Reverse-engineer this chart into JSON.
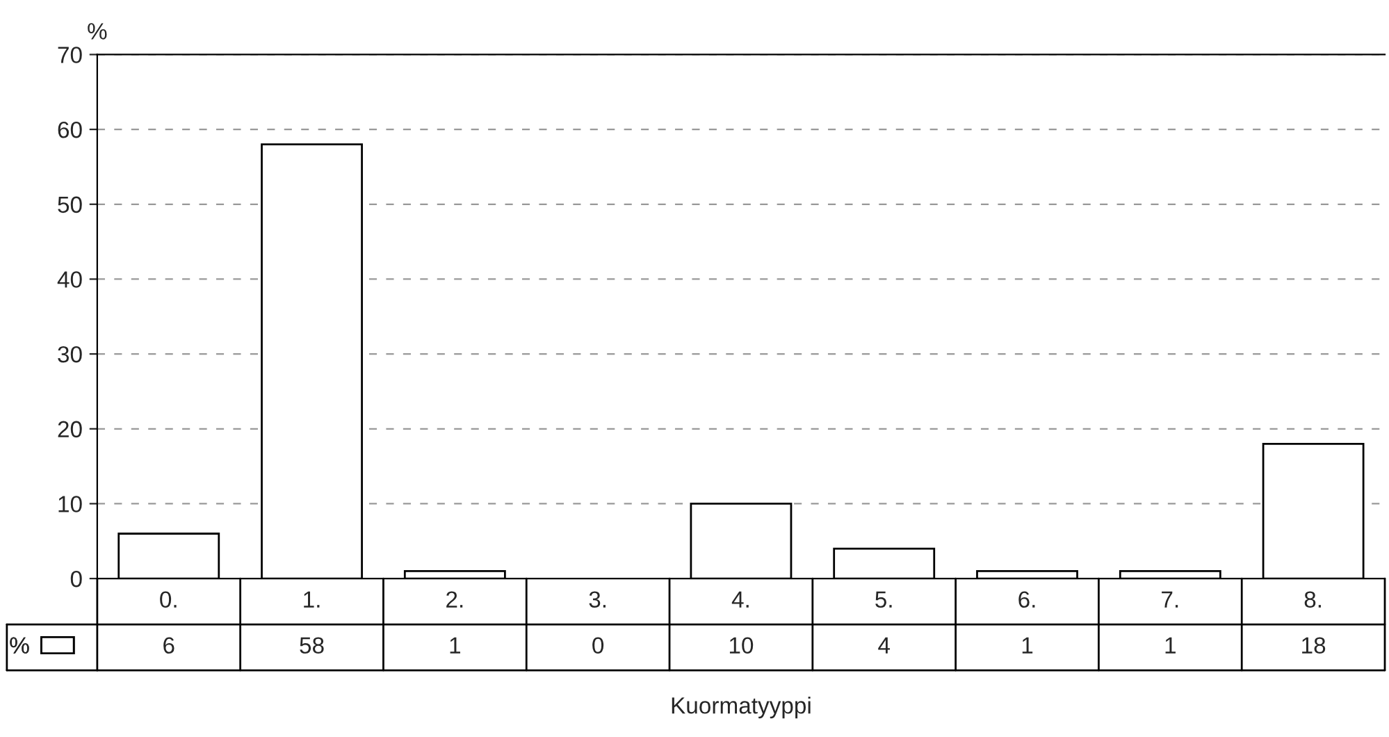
{
  "chart_data": {
    "type": "bar",
    "xlabel": "Kuormatyyppi",
    "ylabel": "%",
    "categories": [
      "0.",
      "1.",
      "2.",
      "3.",
      "4.",
      "5.",
      "6.",
      "7.",
      "8."
    ],
    "series": [
      {
        "name": "%",
        "color": "#ffffff",
        "values": [
          6,
          58,
          1,
          0,
          10,
          4,
          1,
          1,
          18
        ]
      }
    ],
    "ylim": [
      0,
      70
    ],
    "yticks": [
      0,
      10,
      20,
      30,
      40,
      50,
      60,
      70
    ],
    "grid": "y",
    "legend": "bottom left",
    "data_labels": true
  }
}
